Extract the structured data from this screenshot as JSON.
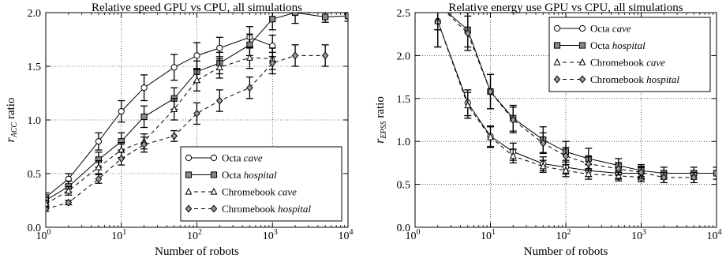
{
  "chart_data": [
    {
      "type": "line",
      "title": "Relative speed GPU vs CPU, all simulations",
      "xlabel": "Number of robots",
      "ylabel_main": "r",
      "ylabel_sub": "ACC",
      "ylabel_suffix": " ratio",
      "xscale": "log",
      "xlim": [
        1,
        10000
      ],
      "ylim": [
        0,
        2.0
      ],
      "grid": true,
      "legend_position": "lower-right",
      "xtick_labels": [
        {
          "value": 1,
          "base": "10",
          "exp": "0"
        },
        {
          "value": 10,
          "base": "10",
          "exp": "1"
        },
        {
          "value": 100,
          "base": "10",
          "exp": "2"
        },
        {
          "value": 1000,
          "base": "10",
          "exp": "3"
        },
        {
          "value": 10000,
          "base": "10",
          "exp": "4"
        }
      ],
      "yticks": [
        {
          "value": 0,
          "label": "0.0"
        },
        {
          "value": 0.5,
          "label": "0.5"
        },
        {
          "value": 1.0,
          "label": "1.0"
        },
        {
          "value": 1.5,
          "label": "1.5"
        },
        {
          "value": 2.0,
          "label": "2.0"
        }
      ],
      "series": [
        {
          "name_prefix": "Octa ",
          "name_italic": "cave",
          "marker": "circle",
          "dash": false,
          "x": [
            1,
            2,
            5,
            10,
            20,
            50,
            100,
            200,
            500,
            1000
          ],
          "y": [
            0.28,
            0.45,
            0.8,
            1.08,
            1.3,
            1.49,
            1.6,
            1.67,
            1.77,
            1.69
          ],
          "err": [
            0.04,
            0.05,
            0.08,
            0.1,
            0.12,
            0.12,
            0.12,
            0.1,
            0.1,
            0.1
          ]
        },
        {
          "name_prefix": "Octa ",
          "name_italic": "hospital",
          "marker": "square",
          "dash": false,
          "x": [
            1,
            2,
            5,
            10,
            20,
            50,
            100,
            200,
            500,
            1000,
            2000,
            5000,
            10000
          ],
          "y": [
            0.25,
            0.38,
            0.63,
            0.8,
            1.03,
            1.2,
            1.45,
            1.53,
            1.7,
            1.94,
            2.0,
            1.96,
            1.97
          ],
          "err": [
            0.04,
            0.05,
            0.07,
            0.08,
            0.1,
            0.1,
            0.1,
            0.1,
            0.1,
            0.1,
            0.1,
            0.05,
            0.05
          ]
        },
        {
          "name_prefix": "Chromebook ",
          "name_italic": "cave",
          "marker": "triangle",
          "dash": true,
          "x": [
            1,
            2,
            5,
            10,
            20,
            50,
            100,
            200,
            500,
            1000
          ],
          "y": [
            0.22,
            0.34,
            0.56,
            0.72,
            0.8,
            1.1,
            1.37,
            1.49,
            1.58,
            1.57
          ],
          "err": [
            0.03,
            0.04,
            0.06,
            0.07,
            0.07,
            0.1,
            0.1,
            0.1,
            0.1,
            0.1
          ]
        },
        {
          "name_prefix": "Chromebook ",
          "name_italic": "hospital",
          "marker": "diamond",
          "dash": true,
          "x": [
            1,
            2,
            5,
            10,
            20,
            50,
            100,
            200,
            500,
            1000,
            2000,
            5000
          ],
          "y": [
            0.17,
            0.23,
            0.45,
            0.64,
            0.77,
            0.85,
            1.06,
            1.18,
            1.3,
            1.53,
            1.6,
            1.6
          ],
          "err": [
            0.02,
            0.02,
            0.04,
            0.06,
            0.07,
            0.05,
            0.1,
            0.1,
            0.1,
            0.1,
            0.1,
            0.1
          ]
        }
      ]
    },
    {
      "type": "line",
      "title": "Relative energy use GPU vs CPU, all simulations",
      "xlabel": "Number of robots",
      "ylabel_main": "r",
      "ylabel_sub": "EPSS",
      "ylabel_suffix": " ratio",
      "xscale": "log",
      "xlim": [
        1,
        10000
      ],
      "ylim": [
        0,
        2.5
      ],
      "grid": true,
      "legend_position": "top-right",
      "xtick_labels": [
        {
          "value": 1,
          "base": "10",
          "exp": "0"
        },
        {
          "value": 10,
          "base": "10",
          "exp": "1"
        },
        {
          "value": 100,
          "base": "10",
          "exp": "2"
        },
        {
          "value": 1000,
          "base": "10",
          "exp": "3"
        },
        {
          "value": 10000,
          "base": "10",
          "exp": "4"
        }
      ],
      "yticks": [
        {
          "value": 0,
          "label": "0.0"
        },
        {
          "value": 0.5,
          "label": "0.5"
        },
        {
          "value": 1.0,
          "label": "1.0"
        },
        {
          "value": 1.5,
          "label": "1.5"
        },
        {
          "value": 2.0,
          "label": "2.0"
        },
        {
          "value": 2.5,
          "label": "2.5"
        }
      ],
      "series": [
        {
          "name_prefix": "Octa ",
          "name_italic": "cave",
          "marker": "circle",
          "dash": false,
          "x": [
            2,
            5,
            10,
            20,
            50,
            100,
            200,
            500,
            1000
          ],
          "y": [
            2.4,
            1.45,
            1.06,
            0.88,
            0.74,
            0.7,
            0.66,
            0.63,
            0.63
          ],
          "err": [
            0.3,
            0.15,
            0.12,
            0.1,
            0.08,
            0.08,
            0.07,
            0.07,
            0.07
          ]
        },
        {
          "name_prefix": "Octa ",
          "name_italic": "hospital",
          "marker": "square",
          "dash": false,
          "x": [
            2,
            5,
            10,
            20,
            50,
            100,
            200,
            500,
            1000,
            2000,
            5000,
            10000
          ],
          "y": [
            2.6,
            2.3,
            1.58,
            1.27,
            1.02,
            0.88,
            0.8,
            0.72,
            0.66,
            0.63,
            0.63,
            0.63
          ],
          "err": [
            0.3,
            0.2,
            0.2,
            0.15,
            0.15,
            0.12,
            0.12,
            0.08,
            0.07,
            0.07,
            0.07,
            0.07
          ]
        },
        {
          "name_prefix": "Chromebook ",
          "name_italic": "cave",
          "marker": "triangle",
          "dash": true,
          "x": [
            2,
            5,
            10,
            20,
            50,
            100,
            200,
            500,
            1000
          ],
          "y": [
            2.4,
            1.42,
            1.05,
            0.83,
            0.71,
            0.66,
            0.62,
            0.6,
            0.58
          ],
          "err": [
            0.3,
            0.15,
            0.12,
            0.08,
            0.07,
            0.07,
            0.06,
            0.06,
            0.05
          ]
        },
        {
          "name_prefix": "Chromebook ",
          "name_italic": "hospital",
          "marker": "diamond",
          "dash": true,
          "x": [
            2,
            5,
            10,
            20,
            50,
            100,
            200,
            500,
            1000,
            2000,
            5000
          ],
          "y": [
            2.6,
            2.26,
            1.58,
            1.25,
            0.98,
            0.83,
            0.74,
            0.68,
            0.64,
            0.58,
            0.58
          ],
          "err": [
            0.3,
            0.2,
            0.2,
            0.15,
            0.12,
            0.1,
            0.08,
            0.07,
            0.07,
            0.06,
            0.06
          ]
        }
      ]
    }
  ]
}
